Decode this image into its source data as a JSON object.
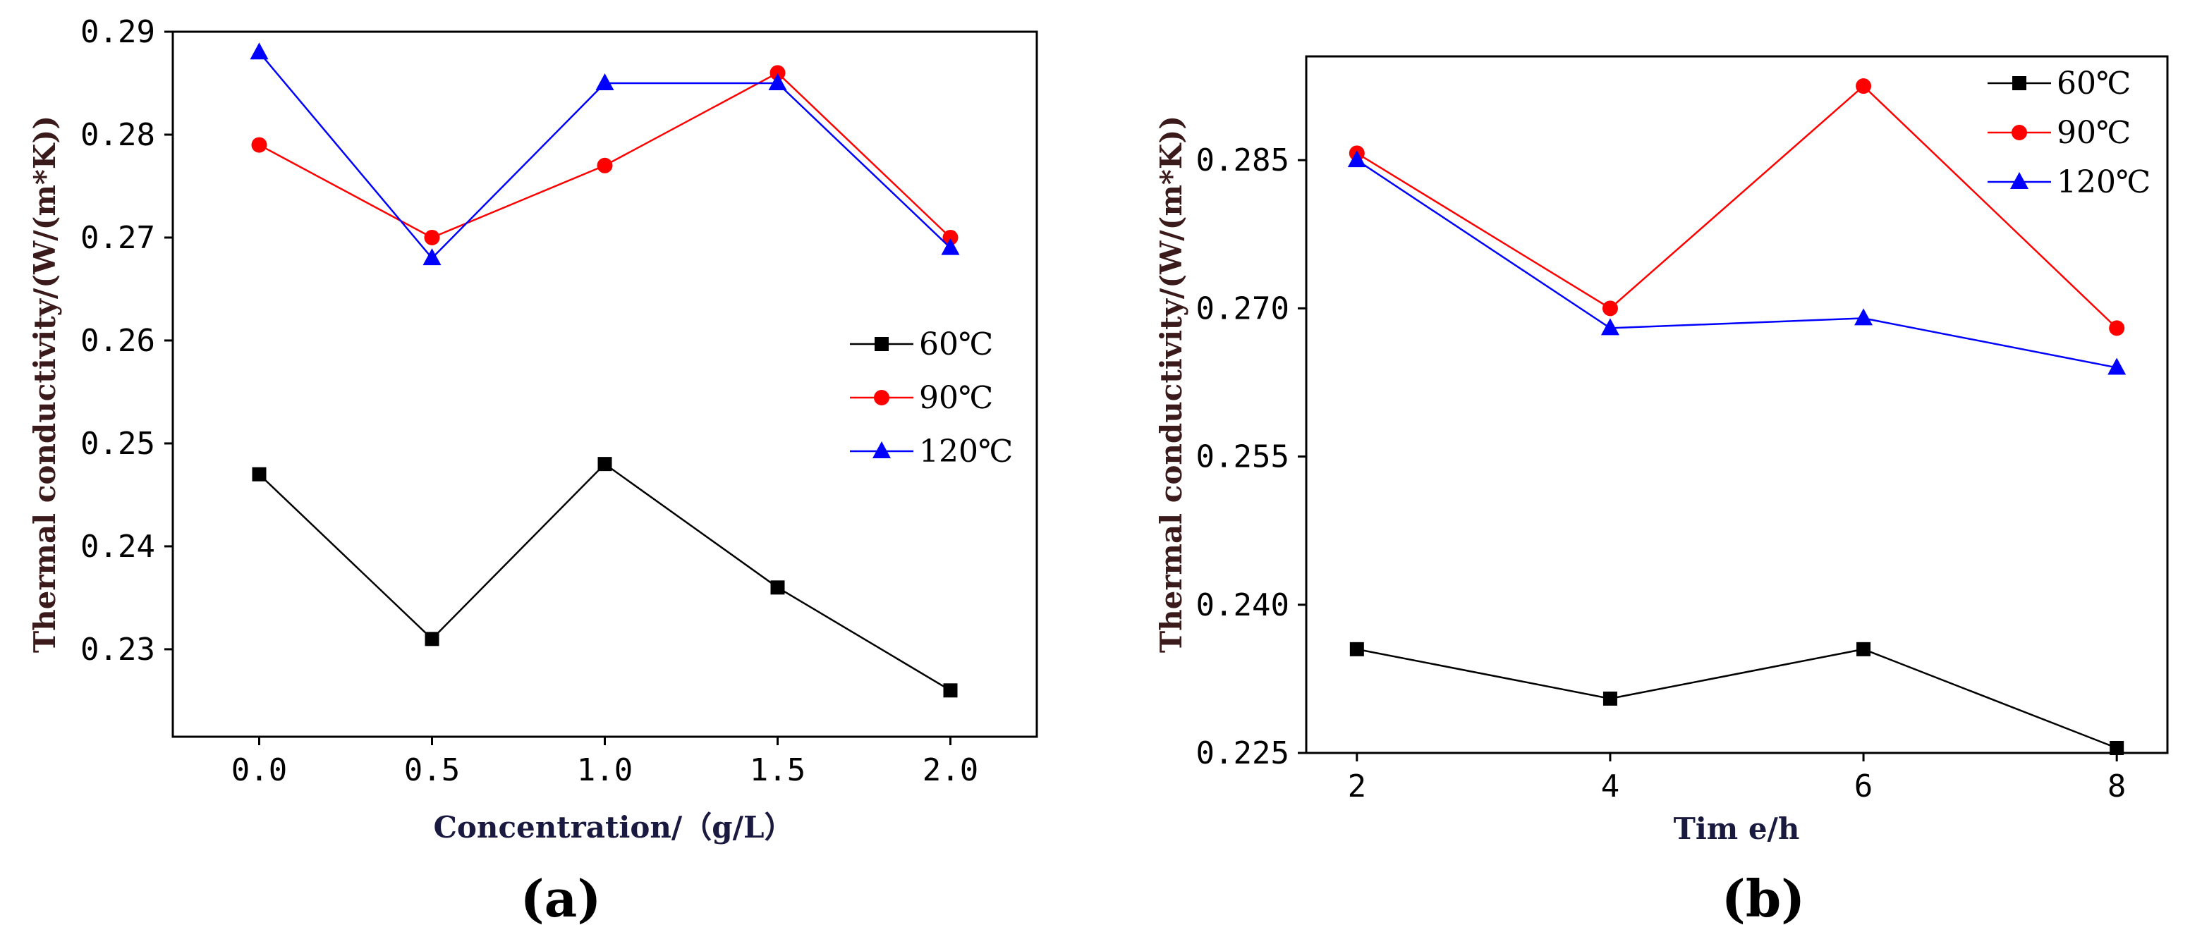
{
  "chart_data": [
    {
      "id": "a",
      "type": "line",
      "panel_label": "(a)",
      "xlabel": "Concentration/（g/L）",
      "ylabel": "Thermal conductivity/(W/(m*K))",
      "x": [
        0.0,
        0.5,
        1.0,
        1.5,
        2.0
      ],
      "x_tick_labels": [
        "0.0",
        "0.5",
        "1.0",
        "1.5",
        "2.0"
      ],
      "xlim": [
        -0.25,
        2.25
      ],
      "ylim": [
        0.2215,
        0.29
      ],
      "y_ticks": [
        0.23,
        0.24,
        0.25,
        0.26,
        0.27,
        0.28,
        0.29
      ],
      "y_tick_labels": [
        "0.23",
        "0.24",
        "0.25",
        "0.26",
        "0.27",
        "0.28",
        "0.29"
      ],
      "legend_position": "right-middle",
      "series": [
        {
          "name": "60℃",
          "color": "#000000",
          "marker": "square",
          "values": [
            0.247,
            0.231,
            0.248,
            0.236,
            0.226
          ]
        },
        {
          "name": "90℃",
          "color": "#ff0000",
          "marker": "circle",
          "values": [
            0.279,
            0.27,
            0.277,
            0.286,
            0.27
          ]
        },
        {
          "name": "120℃",
          "color": "#0000ff",
          "marker": "triangle",
          "values": [
            0.288,
            0.268,
            0.285,
            0.285,
            0.269
          ]
        }
      ]
    },
    {
      "id": "b",
      "type": "line",
      "panel_label": "(b)",
      "xlabel": "Tim e/h",
      "ylabel": "Thermal conductivity/(W/(m*K))",
      "x": [
        2,
        4,
        6,
        8
      ],
      "x_tick_labels": [
        "2",
        "4",
        "6",
        "8"
      ],
      "xlim": [
        1.6,
        8.4
      ],
      "ylim": [
        0.225,
        0.2955
      ],
      "y_ticks": [
        0.225,
        0.24,
        0.255,
        0.27,
        0.285
      ],
      "y_tick_labels": [
        "0.225",
        "0.240",
        "0.255",
        "0.270",
        "0.285"
      ],
      "legend_position": "top-right",
      "series": [
        {
          "name": "60℃",
          "color": "#000000",
          "marker": "square",
          "values": [
            0.2355,
            0.2305,
            0.2355,
            0.2255
          ]
        },
        {
          "name": "90℃",
          "color": "#ff0000",
          "marker": "circle",
          "values": [
            0.2857,
            0.27,
            0.2925,
            0.268
          ]
        },
        {
          "name": "120℃",
          "color": "#0000ff",
          "marker": "triangle",
          "values": [
            0.285,
            0.268,
            0.269,
            0.264
          ]
        }
      ]
    }
  ]
}
